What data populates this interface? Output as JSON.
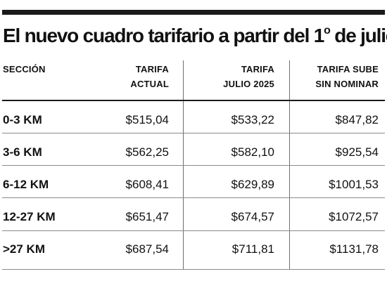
{
  "title_main": "El nuevo cuadro tarifario a partir del 1",
  "title_sup": "o",
  "title_end": " de julio",
  "headers": {
    "seccion": "SECCIÓN",
    "col1_line1": "TARIFA",
    "col1_line2": "ACTUAL",
    "col2_line1": "TARIFA",
    "col2_line2": "JULIO 2025",
    "col3_line1": "TARIFA SUBE",
    "col3_line2": "SIN NOMINAR"
  },
  "rows": [
    {
      "seccion": "0-3 KM",
      "actual": "$515,04",
      "julio": "$533,22",
      "sin_nominar": "$847,82"
    },
    {
      "seccion": "3-6 KM",
      "actual": "$562,25",
      "julio": "$582,10",
      "sin_nominar": "$925,54"
    },
    {
      "seccion": "6-12 KM",
      "actual": "$608,41",
      "julio": "$629,89",
      "sin_nominar": "$1001,53"
    },
    {
      "seccion": "12-27 KM",
      "actual": "$651,47",
      "julio": "$674,57",
      "sin_nominar": "$1072,57"
    },
    {
      "seccion": ">27 KM",
      "actual": "$687,54",
      "julio": "$711,81",
      "sin_nominar": "$1131,78"
    }
  ]
}
